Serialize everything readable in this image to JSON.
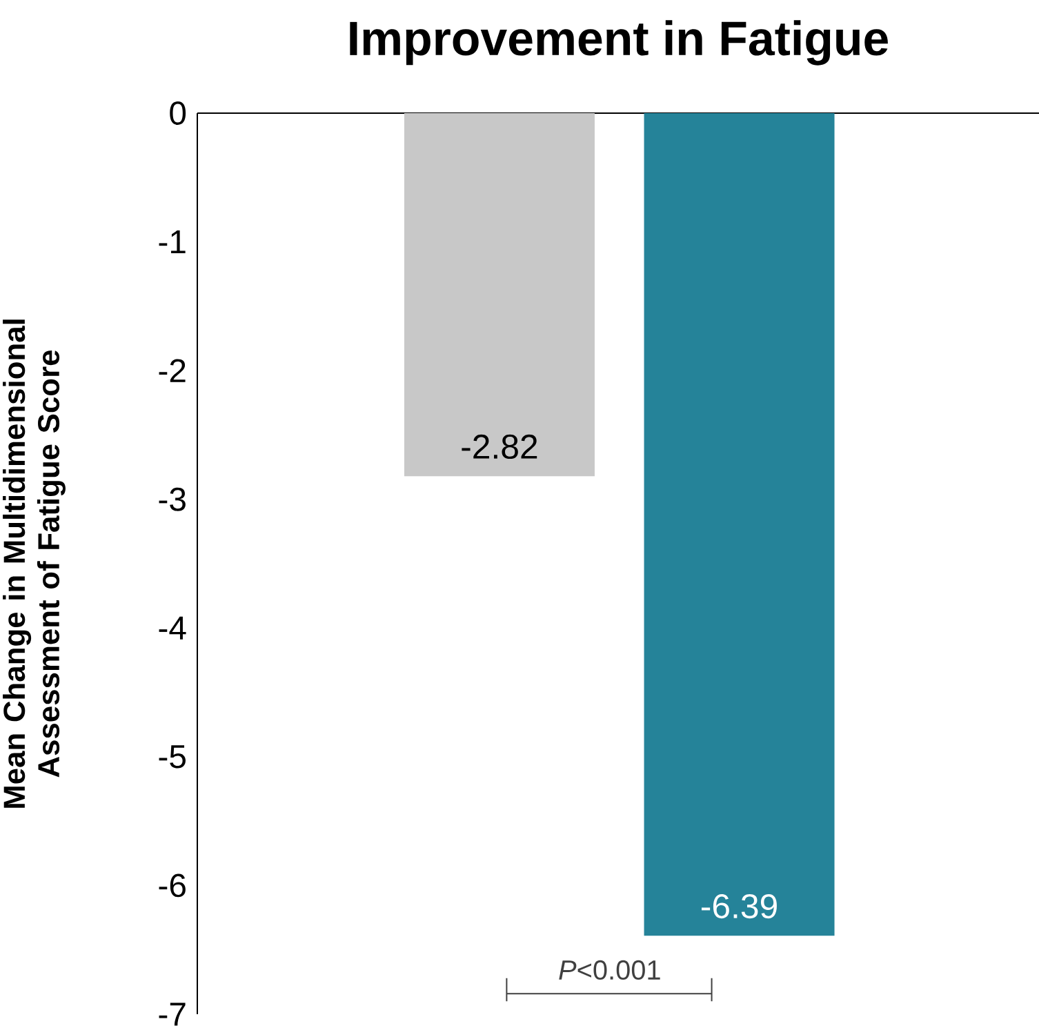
{
  "chart_data": {
    "type": "bar",
    "title": "Improvement in Fatigue",
    "ylabel": "Mean Change in Multidimensional Assessment of Fatigue Score",
    "categories": [
      null,
      null
    ],
    "values": [
      -2.82,
      -6.39
    ],
    "colors": [
      "#c8c8c8",
      "#258399"
    ],
    "value_labels": [
      "-2.82",
      "-6.39"
    ],
    "ylim": [
      -7,
      0
    ],
    "yticks": [
      0,
      -1,
      -2,
      -3,
      -4,
      -5,
      -6,
      -7
    ],
    "annotations": [
      "*P*<0.001"
    ]
  }
}
